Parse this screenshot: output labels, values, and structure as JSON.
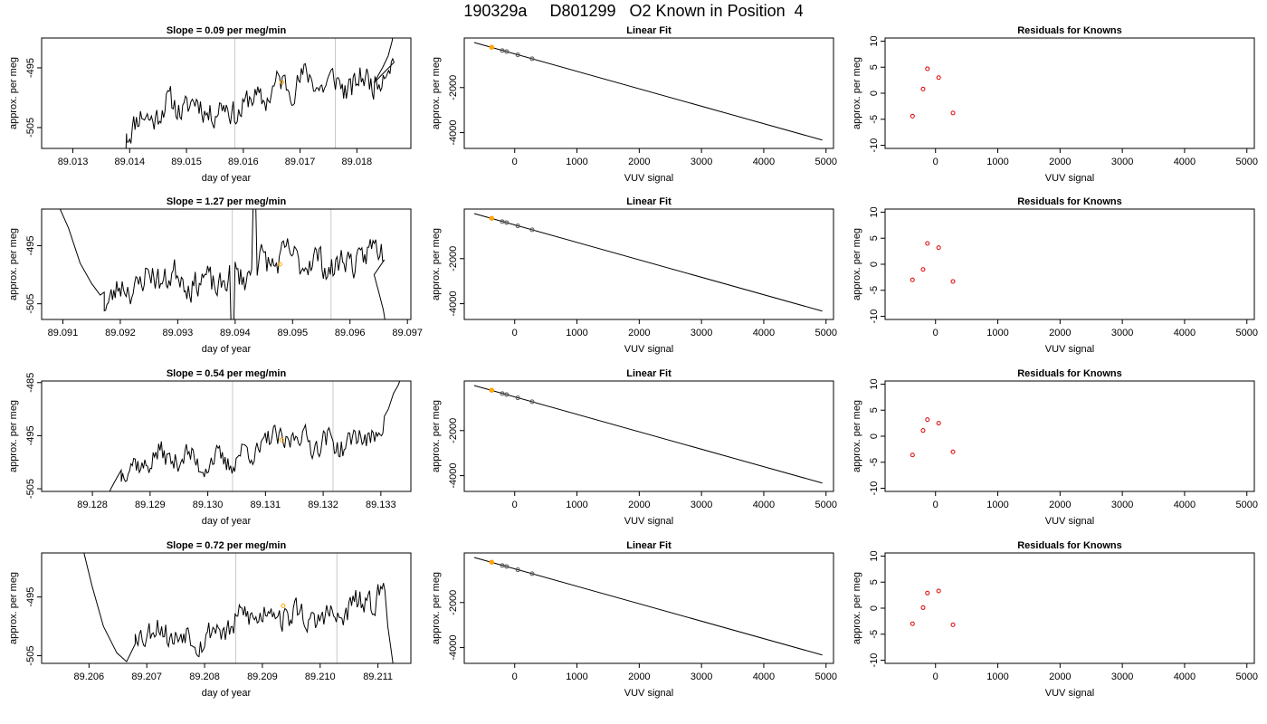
{
  "figure": {
    "title": "190329a     D801299   O2 Known in Position  4"
  },
  "chart_data": [
    {
      "type": "line",
      "panel": "time-series",
      "row": 0,
      "title": "Slope =  0.09  per meg/min",
      "xlabel": "day of year",
      "ylabel": "approx. per meg",
      "xlim": [
        89.01245,
        89.01895
      ],
      "ylim": [
        -508.5,
        -490
      ],
      "xticks": [
        89.013,
        89.014,
        89.015,
        89.016,
        89.017,
        89.018
      ],
      "xtick_labels": [
        "89.013",
        "89.014",
        "89.015",
        "89.016",
        "89.017",
        "89.018"
      ],
      "yticks": [
        -505,
        -495
      ],
      "ytick_labels": [
        "-505",
        "-495"
      ],
      "vlines": [
        89.01585,
        89.01762
      ],
      "marker": {
        "x": 89.01668,
        "y": -497.4,
        "color": "#ffa500"
      },
      "trace": {
        "start": 89.01395,
        "end": 89.01865,
        "step": 2.4e-05,
        "base_start": -504.3,
        "base_end": -495.2,
        "head": [
          -520,
          -510,
          -506
        ],
        "tail_x": [
          89.0183,
          89.01845,
          89.01855,
          89.01862,
          89.01867
        ],
        "tail_y": [
          -497.5,
          -495.0,
          -493.0,
          -490.5,
          -487
        ],
        "amp": 2.6,
        "seed": 11
      }
    },
    {
      "type": "line",
      "panel": "time-series",
      "row": 1,
      "title": "Slope =  1.27  per meg/min",
      "xlabel": "day of year",
      "ylabel": "approx. per meg",
      "xlim": [
        89.09063,
        89.09706
      ],
      "ylim": [
        -507.7,
        -488.7
      ],
      "xticks": [
        89.091,
        89.092,
        89.093,
        89.094,
        89.095,
        89.096,
        89.097
      ],
      "xtick_labels": [
        "89.091",
        "89.092",
        "89.093",
        "89.094",
        "89.095",
        "89.096",
        "89.097"
      ],
      "yticks": [
        -505,
        -495
      ],
      "ytick_labels": [
        "-505",
        "-495"
      ],
      "vlines": [
        89.09395,
        89.09567
      ],
      "marker": {
        "x": 89.09478,
        "y": -498.2,
        "color": "#ffa500"
      },
      "trace": {
        "start": 89.09172,
        "end": 89.09658,
        "step": 2.4e-05,
        "base_start": -503.0,
        "base_end": -495.8,
        "head_x": [
          89.09092,
          89.0911,
          89.0913,
          89.0915,
          89.09165,
          89.09172
        ],
        "head_y": [
          -488.0,
          -492.0,
          -498.0,
          -501.5,
          -503.5,
          -503.0
        ],
        "tail_x": [
          89.09642,
          89.0965,
          89.09658,
          89.09663
        ],
        "tail_y": [
          -500.0,
          -503.0,
          -506.0,
          -509.0
        ],
        "spike_x": 89.09433,
        "spike_y": -488.5,
        "dip_x": 89.09396,
        "dip_y": -509,
        "amp": 2.8,
        "seed": 23
      }
    },
    {
      "type": "line",
      "panel": "time-series",
      "row": 2,
      "title": "Slope =  0.54  per meg/min",
      "xlabel": "day of year",
      "ylabel": "approx. per meg",
      "xlim": [
        89.12712,
        89.13352
      ],
      "ylim": [
        -505.5,
        -484.7
      ],
      "xticks": [
        89.128,
        89.129,
        89.13,
        89.131,
        89.132,
        89.133
      ],
      "xtick_labels": [
        "89.128",
        "89.129",
        "89.130",
        "89.131",
        "89.132",
        "89.133"
      ],
      "yticks": [
        -505,
        -495,
        -485
      ],
      "ytick_labels": [
        "-505",
        "-495",
        "-485"
      ],
      "vlines": [
        89.13043,
        89.13217
      ],
      "marker": {
        "x": 89.13128,
        "y": -495.8,
        "color": "#ffa500"
      },
      "trace": {
        "start": 89.1285,
        "end": 89.13305,
        "step": 2.4e-05,
        "base_start": -501.5,
        "base_end": -494.0,
        "head_x": [
          89.12824,
          89.12832,
          89.12842,
          89.1285
        ],
        "head_y": [
          -507.0,
          -505.0,
          -503.0,
          -501.5
        ],
        "tail_x": [
          89.13313,
          89.13322,
          89.1333,
          89.13335
        ],
        "tail_y": [
          -490.0,
          -487.0,
          -485.5,
          -484.0
        ],
        "amp": 2.5,
        "seed": 37
      }
    },
    {
      "type": "line",
      "panel": "time-series",
      "row": 3,
      "title": "Slope =  0.72  per meg/min",
      "xlabel": "day of year",
      "ylabel": "approx. per meg",
      "xlim": [
        89.20518,
        89.21157
      ],
      "ylim": [
        -506.3,
        -487.5
      ],
      "xticks": [
        89.206,
        89.207,
        89.208,
        89.209,
        89.21,
        89.211
      ],
      "xtick_labels": [
        "89.206",
        "89.207",
        "89.208",
        "89.209",
        "89.210",
        "89.211"
      ],
      "yticks": [
        -505,
        -495
      ],
      "ytick_labels": [
        "-505",
        "-495"
      ],
      "vlines": [
        89.20854,
        89.21029
      ],
      "marker": {
        "x": 89.20936,
        "y": -496.5,
        "color": "#ffa500"
      },
      "trace": {
        "start": 89.2068,
        "end": 89.21112,
        "step": 2.4e-05,
        "base_start": -502.0,
        "base_end": -496.0,
        "head_x": [
          89.2059,
          89.20605,
          89.20625,
          89.20648,
          89.20665,
          89.2068
        ],
        "head_y": [
          -487.0,
          -493.0,
          -500.0,
          -504.5,
          -506.0,
          -503.0
        ],
        "tail_x": [
          89.21117,
          89.21122,
          89.21127
        ],
        "tail_y": [
          -500.0,
          -503.5,
          -507.0
        ],
        "amp": 2.6,
        "seed": 53
      }
    },
    {
      "type": "scatter",
      "panel": "linear-fit",
      "row": 0,
      "title": "Linear Fit",
      "xlabel": "VUV signal",
      "ylabel": "approx. per meg",
      "xlim": [
        -810,
        5120
      ],
      "ylim": [
        -4700,
        200
      ],
      "xticks": [
        0,
        1000,
        2000,
        3000,
        4000,
        5000
      ],
      "xtick_labels": [
        "0",
        "1000",
        "2000",
        "3000",
        "4000",
        "5000"
      ],
      "yticks": [
        -4000,
        -2000
      ],
      "ytick_labels": [
        "-4000",
        "-2000"
      ],
      "fit_line": {
        "x": [
          -650,
          4940
        ],
        "y": [
          0,
          -4330
        ]
      },
      "points": {
        "x": [
          -370,
          -200,
          -130,
          50,
          280
        ],
        "y": [
          -210,
          -355,
          -400,
          -545,
          -720
        ]
      },
      "highlight": {
        "x": -370,
        "y": -210,
        "color": "#ffa500"
      }
    },
    {
      "type": "scatter",
      "panel": "linear-fit",
      "row": 1,
      "title": "Linear Fit",
      "xlabel": "VUV signal",
      "ylabel": "approx. per meg",
      "xlim": [
        -810,
        5120
      ],
      "ylim": [
        -4700,
        200
      ],
      "xticks": [
        0,
        1000,
        2000,
        3000,
        4000,
        5000
      ],
      "xtick_labels": [
        "0",
        "1000",
        "2000",
        "3000",
        "4000",
        "5000"
      ],
      "yticks": [
        -4000,
        -2000
      ],
      "ytick_labels": [
        "-4000",
        "-2000"
      ],
      "fit_line": {
        "x": [
          -650,
          4940
        ],
        "y": [
          0,
          -4330
        ]
      },
      "points": {
        "x": [
          -370,
          -200,
          -130,
          50,
          280
        ],
        "y": [
          -210,
          -355,
          -400,
          -545,
          -720
        ]
      },
      "highlight": {
        "x": -370,
        "y": -210,
        "color": "#ffa500"
      }
    },
    {
      "type": "scatter",
      "panel": "linear-fit",
      "row": 2,
      "title": "Linear Fit",
      "xlabel": "VUV signal",
      "ylabel": "approx. per meg",
      "xlim": [
        -810,
        5120
      ],
      "ylim": [
        -4700,
        200
      ],
      "xticks": [
        0,
        1000,
        2000,
        3000,
        4000,
        5000
      ],
      "xtick_labels": [
        "0",
        "1000",
        "2000",
        "3000",
        "4000",
        "5000"
      ],
      "yticks": [
        -4000,
        -2000
      ],
      "ytick_labels": [
        "-4000",
        "-2000"
      ],
      "fit_line": {
        "x": [
          -650,
          4940
        ],
        "y": [
          0,
          -4330
        ]
      },
      "points": {
        "x": [
          -370,
          -200,
          -130,
          50,
          280
        ],
        "y": [
          -210,
          -355,
          -400,
          -545,
          -720
        ]
      },
      "highlight": {
        "x": -370,
        "y": -210,
        "color": "#ffa500"
      }
    },
    {
      "type": "scatter",
      "panel": "linear-fit",
      "row": 3,
      "title": "Linear Fit",
      "xlabel": "VUV signal",
      "ylabel": "approx. per meg",
      "xlim": [
        -810,
        5120
      ],
      "ylim": [
        -4700,
        200
      ],
      "xticks": [
        0,
        1000,
        2000,
        3000,
        4000,
        5000
      ],
      "xtick_labels": [
        "0",
        "1000",
        "2000",
        "3000",
        "4000",
        "5000"
      ],
      "yticks": [
        -4000,
        -2000
      ],
      "ytick_labels": [
        "-4000",
        "-2000"
      ],
      "fit_line": {
        "x": [
          -650,
          4940
        ],
        "y": [
          0,
          -4330
        ]
      },
      "points": {
        "x": [
          -370,
          -200,
          -130,
          50,
          280
        ],
        "y": [
          -210,
          -355,
          -400,
          -545,
          -720
        ]
      },
      "highlight": {
        "x": -370,
        "y": -210,
        "color": "#ffa500"
      }
    },
    {
      "type": "scatter",
      "panel": "residuals",
      "row": 0,
      "title": "Residuals for Knowns",
      "xlabel": "VUV signal",
      "ylabel": "approx. per meg",
      "xlim": [
        -810,
        5120
      ],
      "ylim": [
        -10.6,
        10.6
      ],
      "xticks": [
        0,
        1000,
        2000,
        3000,
        4000,
        5000
      ],
      "xtick_labels": [
        "0",
        "1000",
        "2000",
        "3000",
        "4000",
        "5000"
      ],
      "yticks": [
        -10,
        -5,
        0,
        5,
        10
      ],
      "ytick_labels": [
        "-10",
        "-5",
        "0",
        "5",
        "10"
      ],
      "points": {
        "x": [
          -370,
          -200,
          -130,
          50,
          280
        ],
        "y": [
          -4.4,
          0.8,
          4.7,
          3.0,
          -3.8
        ]
      },
      "point_color": "#dd0000"
    },
    {
      "type": "scatter",
      "panel": "residuals",
      "row": 1,
      "title": "Residuals for Knowns",
      "xlabel": "VUV signal",
      "ylabel": "approx. per meg",
      "xlim": [
        -810,
        5120
      ],
      "ylim": [
        -10.6,
        10.6
      ],
      "xticks": [
        0,
        1000,
        2000,
        3000,
        4000,
        5000
      ],
      "xtick_labels": [
        "0",
        "1000",
        "2000",
        "3000",
        "4000",
        "5000"
      ],
      "yticks": [
        -10,
        -5,
        0,
        5,
        10
      ],
      "ytick_labels": [
        "-10",
        "-5",
        "0",
        "5",
        "10"
      ],
      "points": {
        "x": [
          -370,
          -200,
          -130,
          50,
          280
        ],
        "y": [
          -3.0,
          -1.0,
          4.0,
          3.2,
          -3.3
        ]
      },
      "point_color": "#dd0000"
    },
    {
      "type": "scatter",
      "panel": "residuals",
      "row": 2,
      "title": "Residuals for Knowns",
      "xlabel": "VUV signal",
      "ylabel": "approx. per meg",
      "xlim": [
        -810,
        5120
      ],
      "ylim": [
        -10.6,
        10.6
      ],
      "xticks": [
        0,
        1000,
        2000,
        3000,
        4000,
        5000
      ],
      "xtick_labels": [
        "0",
        "1000",
        "2000",
        "3000",
        "4000",
        "5000"
      ],
      "yticks": [
        -10,
        -5,
        0,
        5,
        10
      ],
      "ytick_labels": [
        "-10",
        "-5",
        "0",
        "5",
        "10"
      ],
      "points": {
        "x": [
          -370,
          -200,
          -130,
          50,
          280
        ],
        "y": [
          -3.6,
          1.1,
          3.2,
          2.5,
          -3.0
        ]
      },
      "point_color": "#dd0000"
    },
    {
      "type": "scatter",
      "panel": "residuals",
      "row": 3,
      "title": "Residuals for Knowns",
      "xlabel": "VUV signal",
      "ylabel": "approx. per meg",
      "xlim": [
        -810,
        5120
      ],
      "ylim": [
        -10.6,
        10.6
      ],
      "xticks": [
        0,
        1000,
        2000,
        3000,
        4000,
        5000
      ],
      "xtick_labels": [
        "0",
        "1000",
        "2000",
        "3000",
        "4000",
        "5000"
      ],
      "yticks": [
        -10,
        -5,
        0,
        5,
        10
      ],
      "ytick_labels": [
        "-10",
        "-5",
        "0",
        "5",
        "10"
      ],
      "points": {
        "x": [
          -370,
          -200,
          -130,
          50,
          280
        ],
        "y": [
          -3.0,
          0.1,
          2.9,
          3.3,
          -3.2
        ]
      },
      "point_color": "#dd0000"
    }
  ]
}
